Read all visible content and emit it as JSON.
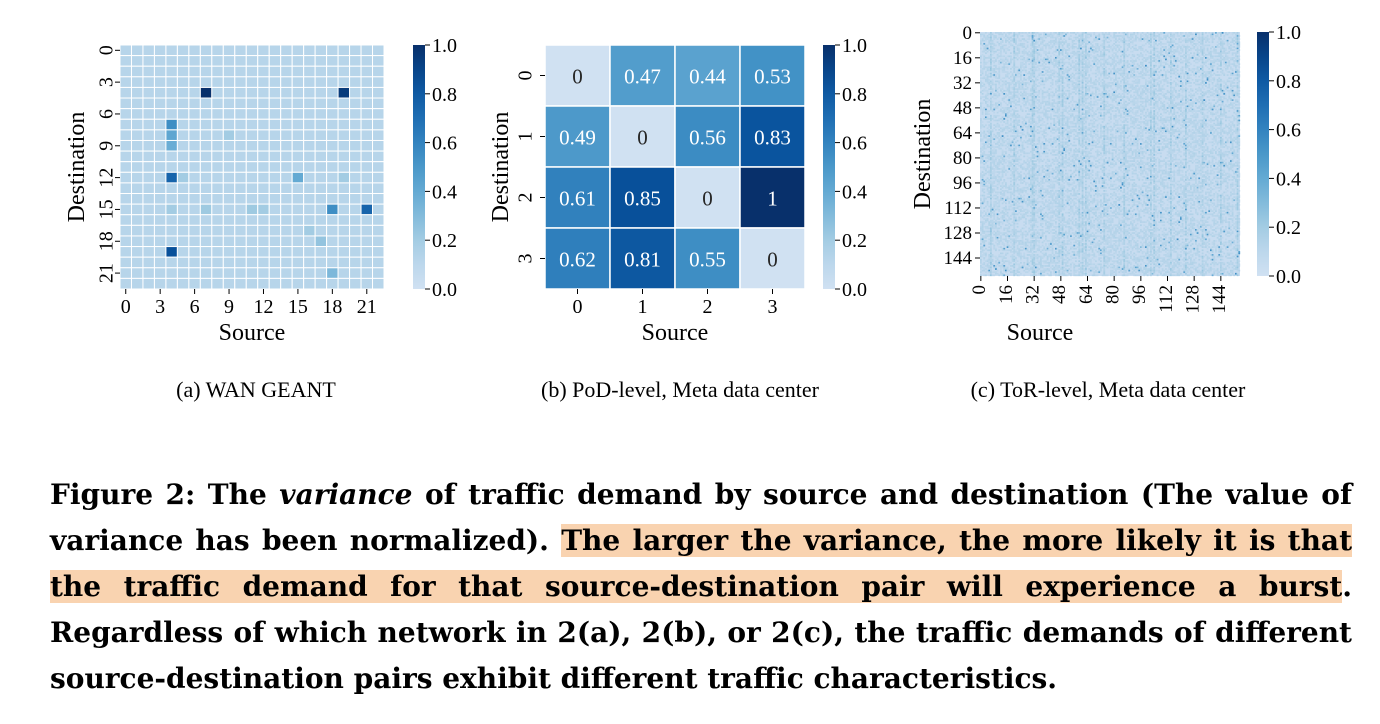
{
  "chart_data": [
    {
      "type": "heatmap",
      "caption": "(a)  WAN GEANT",
      "xlabel": "Source",
      "ylabel": "Destination",
      "size": 23,
      "xticks": [
        0,
        3,
        6,
        9,
        12,
        15,
        18,
        21
      ],
      "yticks": [
        0,
        3,
        6,
        9,
        12,
        15,
        18,
        21
      ],
      "colorbar": {
        "min": 0.0,
        "max": 1.0,
        "ticks": [
          "0.0",
          "0.2",
          "0.4",
          "0.6",
          "0.8",
          "1.0"
        ]
      },
      "base_value": 0.12,
      "cells": [
        {
          "src": 7,
          "dst": 4,
          "v": 1.0
        },
        {
          "src": 19,
          "dst": 4,
          "v": 0.95
        },
        {
          "src": 4,
          "dst": 7,
          "v": 0.55
        },
        {
          "src": 4,
          "dst": 8,
          "v": 0.42
        },
        {
          "src": 4,
          "dst": 9,
          "v": 0.38
        },
        {
          "src": 9,
          "dst": 8,
          "v": 0.2
        },
        {
          "src": 4,
          "dst": 12,
          "v": 0.75
        },
        {
          "src": 5,
          "dst": 12,
          "v": 0.2
        },
        {
          "src": 15,
          "dst": 12,
          "v": 0.4
        },
        {
          "src": 19,
          "dst": 12,
          "v": 0.2
        },
        {
          "src": 4,
          "dst": 15,
          "v": 0.2
        },
        {
          "src": 7,
          "dst": 15,
          "v": 0.22
        },
        {
          "src": 11,
          "dst": 15,
          "v": 0.22
        },
        {
          "src": 12,
          "dst": 15,
          "v": 0.2
        },
        {
          "src": 18,
          "dst": 15,
          "v": 0.55
        },
        {
          "src": 21,
          "dst": 15,
          "v": 0.75
        },
        {
          "src": 16,
          "dst": 17,
          "v": 0.2
        },
        {
          "src": 17,
          "dst": 18,
          "v": 0.25
        },
        {
          "src": 4,
          "dst": 19,
          "v": 0.85
        },
        {
          "src": 18,
          "dst": 21,
          "v": 0.32
        }
      ]
    },
    {
      "type": "heatmap",
      "caption": "(b)  PoD-level, Meta data center",
      "xlabel": "Source",
      "ylabel": "Destination",
      "categories_x": [
        "0",
        "1",
        "2",
        "3"
      ],
      "categories_y": [
        "0",
        "1",
        "2",
        "3"
      ],
      "colorbar": {
        "min": 0.0,
        "max": 1.0,
        "ticks": [
          "0.0",
          "0.2",
          "0.4",
          "0.6",
          "0.8",
          "1.0"
        ]
      },
      "values": [
        [
          0,
          0.47,
          0.44,
          0.53
        ],
        [
          0.49,
          0,
          0.56,
          0.83
        ],
        [
          0.61,
          0.85,
          0,
          1
        ],
        [
          0.62,
          0.81,
          0.55,
          0
        ]
      ],
      "labels": [
        [
          "0",
          "0.47",
          "0.44",
          "0.53"
        ],
        [
          "0.49",
          "0",
          "0.56",
          "0.83"
        ],
        [
          "0.61",
          "0.85",
          "0",
          "1"
        ],
        [
          "0.62",
          "0.81",
          "0.55",
          "0"
        ]
      ]
    },
    {
      "type": "heatmap",
      "caption": "(c)  ToR-level, Meta data center",
      "xlabel": "Source",
      "ylabel": "Destination",
      "size": 156,
      "xticks": [
        0,
        16,
        32,
        48,
        64,
        80,
        96,
        112,
        128,
        144
      ],
      "yticks": [
        0,
        16,
        32,
        48,
        64,
        80,
        96,
        112,
        128,
        144
      ],
      "colorbar": {
        "min": 0.0,
        "max": 1.0,
        "ticks": [
          "0.0",
          "0.2",
          "0.4",
          "0.6",
          "0.8",
          "1.0"
        ]
      },
      "note": "dense low-variance field (mostly 0.05–0.35) with sparse darker cells"
    }
  ],
  "caption": {
    "prefix": "Figure 2: The ",
    "italic": "variance",
    "part2": " of traffic demand by source and destination (The value of variance has been normalized). ",
    "highlight": "The larger the variance, the more likely it is that the traffic demand for that source-destination pair will experience a burst",
    "part3": ". Regardless of which network in 2(a), 2(b), or 2(c), the traffic demands of different source-destination pairs exhibit different traffic characteristics."
  }
}
